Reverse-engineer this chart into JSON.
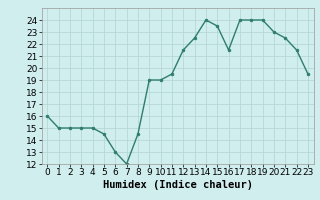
{
  "x": [
    0,
    1,
    2,
    3,
    4,
    5,
    6,
    7,
    8,
    9,
    10,
    11,
    12,
    13,
    14,
    15,
    16,
    17,
    18,
    19,
    20,
    21,
    22,
    23
  ],
  "y": [
    16,
    15,
    15,
    15,
    15,
    14.5,
    13,
    12,
    14.5,
    19,
    19,
    19.5,
    21.5,
    22.5,
    24,
    23.5,
    21.5,
    24,
    24,
    24,
    23,
    22.5,
    21.5,
    19.5
  ],
  "line_color": "#2e7d6e",
  "marker_color": "#2e7d6e",
  "bg_color": "#d0eeee",
  "grid_color": "#b8d8d8",
  "xlabel": "Humidex (Indice chaleur)",
  "xlim": [
    -0.5,
    23.5
  ],
  "ylim": [
    12,
    25
  ],
  "yticks": [
    12,
    13,
    14,
    15,
    16,
    17,
    18,
    19,
    20,
    21,
    22,
    23,
    24
  ],
  "xticks": [
    0,
    1,
    2,
    3,
    4,
    5,
    6,
    7,
    8,
    9,
    10,
    11,
    12,
    13,
    14,
    15,
    16,
    17,
    18,
    19,
    20,
    21,
    22,
    23
  ],
  "tick_fontsize": 6.5,
  "label_fontsize": 7.5
}
